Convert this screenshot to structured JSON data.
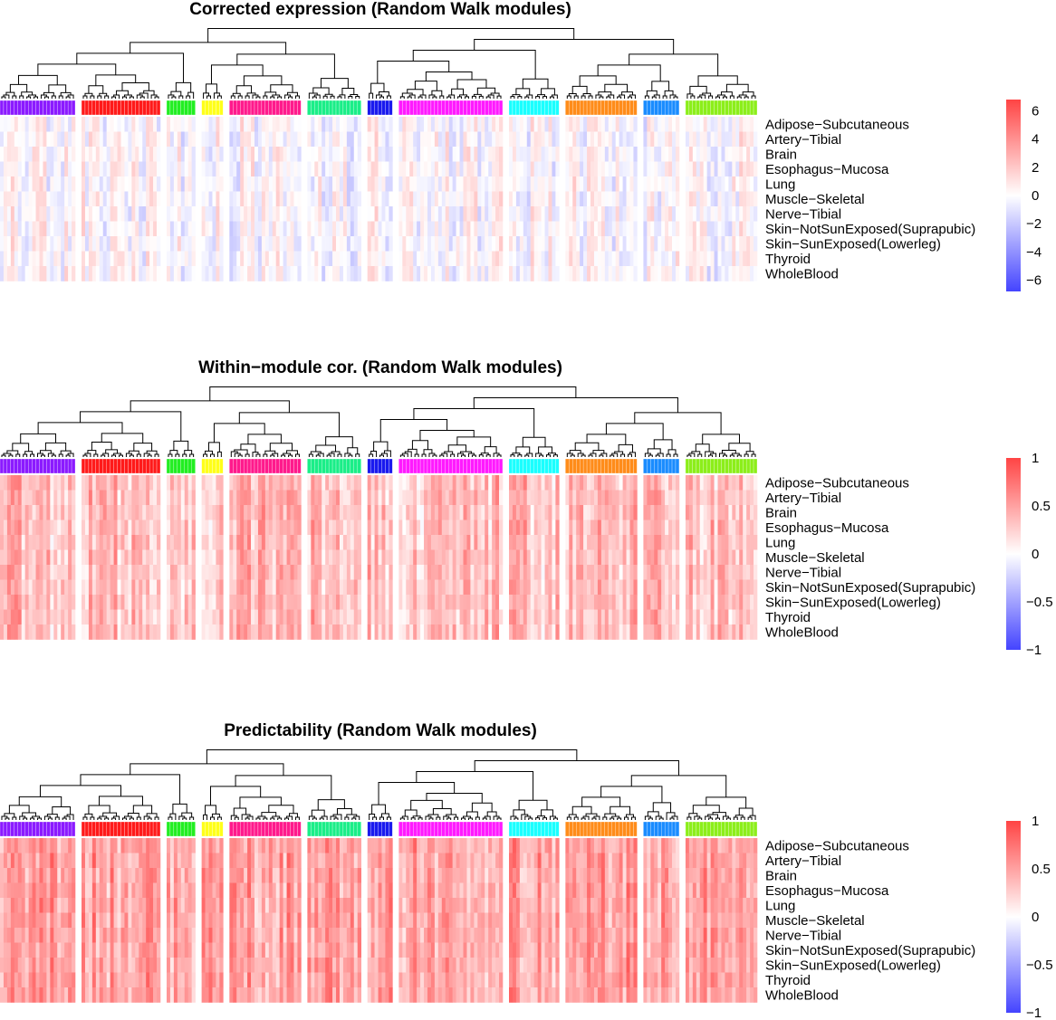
{
  "chart_data": [
    {
      "type": "heatmap",
      "title": "Corrected expression (Random Walk modules)",
      "rows": [
        "Adipose−Subcutaneous",
        "Artery−Tibial",
        "Brain",
        "Esophagus−Mucosa",
        "Lung",
        "Muscle−Skeletal",
        "Nerve−Tibial",
        "Skin−NotSunExposed(Suprapubic)",
        "Skin−SunExposed(Lowerleg)",
        "Thyroid",
        "WholeBlood"
      ],
      "modules": [
        {
          "color": "#8b1aff",
          "columns": 21
        },
        {
          "color": "#ff1a1a",
          "columns": 22
        },
        {
          "color": "#22ee22",
          "columns": 8
        },
        {
          "color": "#ffff1a",
          "columns": 6
        },
        {
          "color": "#ff1a8c",
          "columns": 20
        },
        {
          "color": "#1aee88",
          "columns": 15
        },
        {
          "color": "#1a1aee",
          "columns": 7
        },
        {
          "color": "#ff1aff",
          "columns": 29
        },
        {
          "color": "#1affff",
          "columns": 14
        },
        {
          "color": "#ff8c1a",
          "columns": 20
        },
        {
          "color": "#1a8cff",
          "columns": 10
        },
        {
          "color": "#8cee1a",
          "columns": 20
        }
      ],
      "color_scale": {
        "min": -6.8,
        "max": 6.8,
        "low": "#4444ff",
        "mid": "#ffffff",
        "high": "#ff4444"
      },
      "colorbar_ticks": [
        6,
        4,
        2,
        0,
        -2,
        -4,
        -6
      ],
      "colorbar_labels": [
        "6",
        "4",
        "2",
        "0",
        "−2",
        "−4",
        "−6"
      ],
      "legend_position": "right"
    },
    {
      "type": "heatmap",
      "title": "Within−module cor. (Random Walk modules)",
      "rows": [
        "Adipose−Subcutaneous",
        "Artery−Tibial",
        "Brain",
        "Esophagus−Mucosa",
        "Lung",
        "Muscle−Skeletal",
        "Nerve−Tibial",
        "Skin−NotSunExposed(Suprapubic)",
        "Skin−SunExposed(Lowerleg)",
        "Thyroid",
        "WholeBlood"
      ],
      "modules": [
        {
          "color": "#8b1aff",
          "columns": 21
        },
        {
          "color": "#ff1a1a",
          "columns": 22
        },
        {
          "color": "#22ee22",
          "columns": 8
        },
        {
          "color": "#ffff1a",
          "columns": 6
        },
        {
          "color": "#ff1a8c",
          "columns": 20
        },
        {
          "color": "#1aee88",
          "columns": 15
        },
        {
          "color": "#1a1aee",
          "columns": 7
        },
        {
          "color": "#ff1aff",
          "columns": 29
        },
        {
          "color": "#1affff",
          "columns": 14
        },
        {
          "color": "#ff8c1a",
          "columns": 20
        },
        {
          "color": "#1a8cff",
          "columns": 10
        },
        {
          "color": "#8cee1a",
          "columns": 20
        }
      ],
      "color_scale": {
        "min": -1,
        "max": 1,
        "low": "#4444ff",
        "mid": "#ffffff",
        "high": "#ff4444"
      },
      "colorbar_ticks": [
        1,
        0.5,
        0,
        -0.5,
        -1
      ],
      "colorbar_labels": [
        "1",
        "0.5",
        "0",
        "−0.5",
        "−1"
      ],
      "legend_position": "right"
    },
    {
      "type": "heatmap",
      "title": "Predictability (Random Walk modules)",
      "rows": [
        "Adipose−Subcutaneous",
        "Artery−Tibial",
        "Brain",
        "Esophagus−Mucosa",
        "Lung",
        "Muscle−Skeletal",
        "Nerve−Tibial",
        "Skin−NotSunExposed(Suprapubic)",
        "Skin−SunExposed(Lowerleg)",
        "Thyroid",
        "WholeBlood"
      ],
      "modules": [
        {
          "color": "#8b1aff",
          "columns": 21
        },
        {
          "color": "#ff1a1a",
          "columns": 22
        },
        {
          "color": "#22ee22",
          "columns": 8
        },
        {
          "color": "#ffff1a",
          "columns": 6
        },
        {
          "color": "#ff1a8c",
          "columns": 20
        },
        {
          "color": "#1aee88",
          "columns": 15
        },
        {
          "color": "#1a1aee",
          "columns": 7
        },
        {
          "color": "#ff1aff",
          "columns": 29
        },
        {
          "color": "#1affff",
          "columns": 14
        },
        {
          "color": "#ff8c1a",
          "columns": 20
        },
        {
          "color": "#1a8cff",
          "columns": 10
        },
        {
          "color": "#8cee1a",
          "columns": 20
        }
      ],
      "color_scale": {
        "min": -1,
        "max": 1,
        "low": "#4444ff",
        "mid": "#ffffff",
        "high": "#ff4444"
      },
      "colorbar_ticks": [
        1,
        0.5,
        0,
        -0.5,
        -1
      ],
      "colorbar_labels": [
        "1",
        "0.5",
        "0",
        "−0.5",
        "−1"
      ],
      "legend_position": "right"
    }
  ]
}
